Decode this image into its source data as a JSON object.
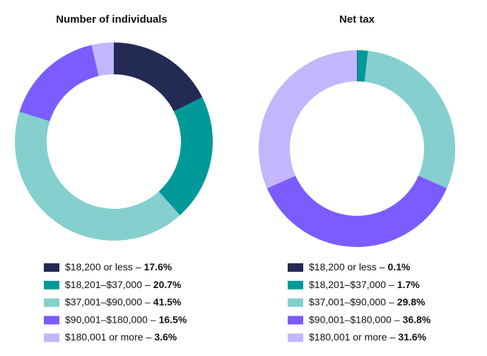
{
  "chart_data": [
    {
      "type": "pie",
      "title": "Number of individuals",
      "donut": true,
      "label_separator": "–",
      "categories": [
        "$18,200 or less",
        "$18,201–$37,000",
        "$37,001–$90,000",
        "$90,001–$180,000",
        "$180,001 or more"
      ],
      "values": [
        17.6,
        20.7,
        41.5,
        16.5,
        3.6
      ],
      "value_labels": [
        "17.6%",
        "20.7%",
        "41.5%",
        "16.5%",
        "3.6%"
      ],
      "colors": [
        "#232a54",
        "#009999",
        "#85cfcf",
        "#7b5cff",
        "#c4b5ff"
      ]
    },
    {
      "type": "pie",
      "title": "Net tax",
      "donut": true,
      "label_separator": "–",
      "categories": [
        "$18,200 or less",
        "$18,201–$37,000",
        "$37,001–$90,000",
        "$90,001–$180,000",
        "$180,001 or more"
      ],
      "values": [
        0.1,
        1.7,
        29.8,
        36.8,
        31.6
      ],
      "value_labels": [
        "0.1%",
        "1.7%",
        "29.8%",
        "36.8%",
        "31.6%"
      ],
      "colors": [
        "#232a54",
        "#009999",
        "#85cfcf",
        "#7b5cff",
        "#c4b5ff"
      ]
    }
  ]
}
